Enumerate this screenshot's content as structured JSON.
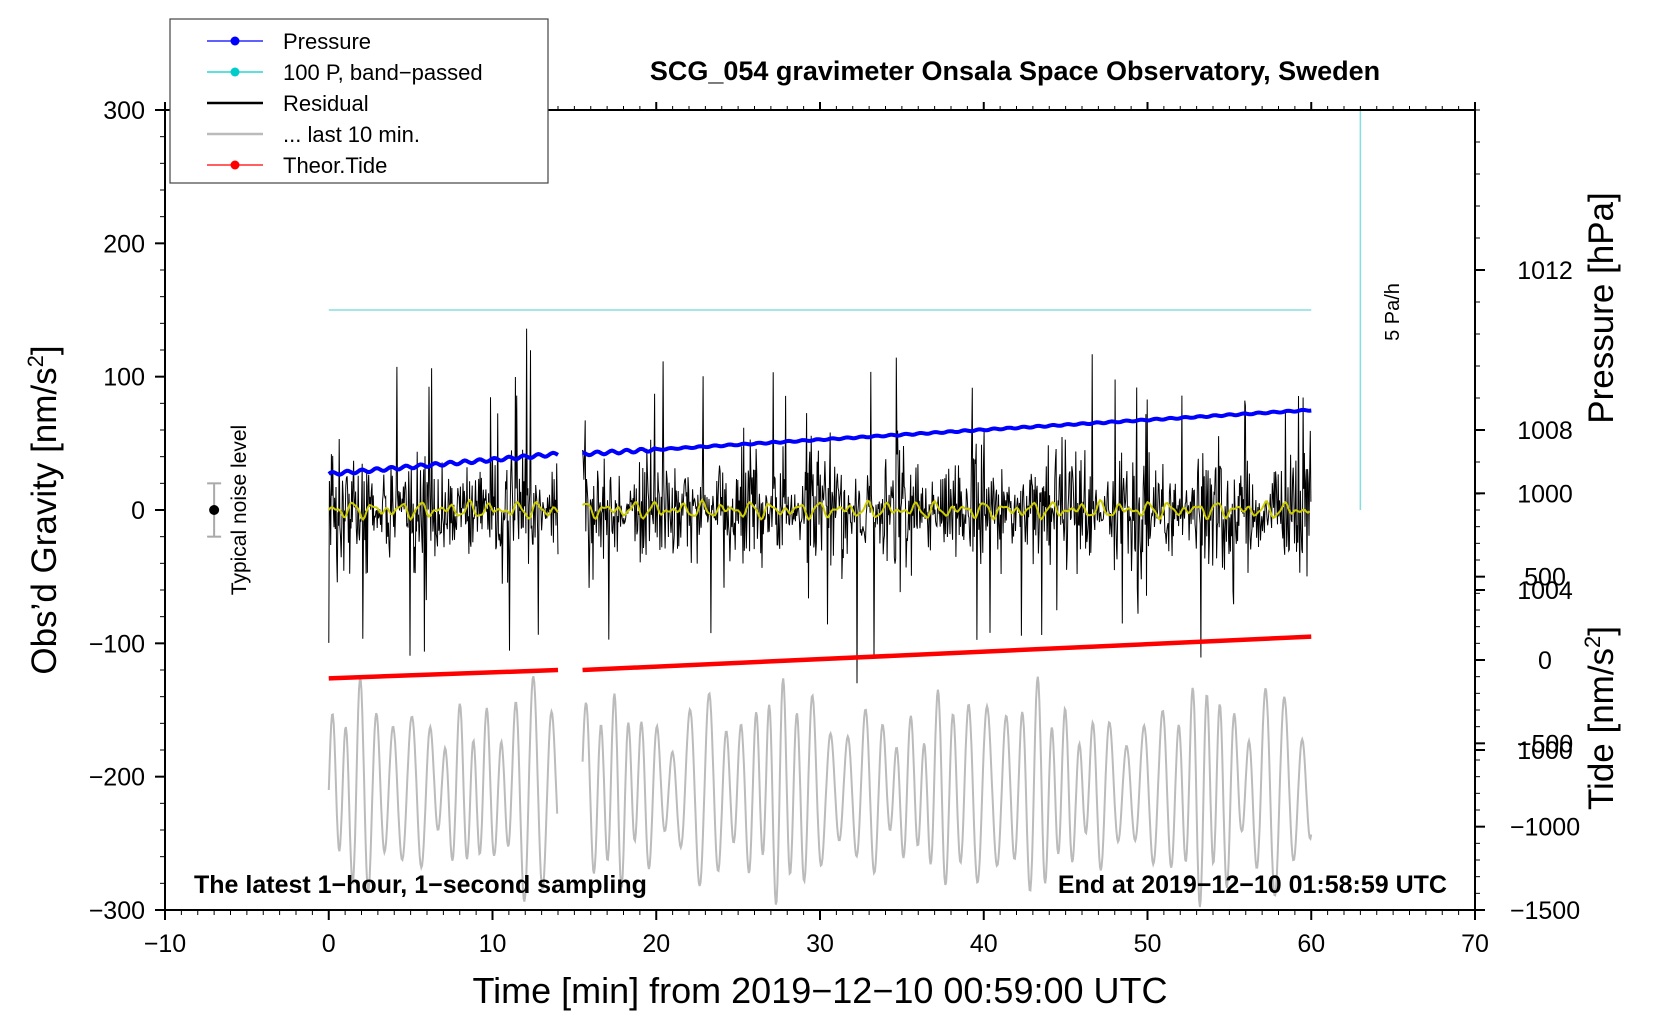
{
  "chart_data": {
    "type": "line",
    "title": "SCG_054 gravimeter Onsala Space Observatory, Sweden",
    "xlabel": "Time [min] from 2019−12−10 00:59:00 UTC",
    "ylabel_main": "Obs’d Gravity [nm/s",
    "ylabel_sup": "2",
    "ylabel_close": "]",
    "ylabel_pressure": "Pressure [hPa]",
    "ylabel_tide": "Tide [nm/s",
    "ylabel_tide_sup": "2",
    "ylabel_tide_close": "]",
    "xlim": [
      -10,
      70
    ],
    "ylim": [
      -300,
      300
    ],
    "pressure_lim": [
      996,
      1016
    ],
    "tide_lim": [
      -1500,
      3300
    ],
    "x_ticks": [
      "−10",
      "0",
      "10",
      "20",
      "30",
      "40",
      "50",
      "60",
      "70"
    ],
    "x_tick_values": [
      -10,
      0,
      10,
      20,
      30,
      40,
      50,
      60,
      70
    ],
    "y_ticks": [
      "300",
      "200",
      "100",
      "0",
      "−100",
      "−200",
      "−300"
    ],
    "y_tick_values": [
      300,
      200,
      100,
      0,
      -100,
      -200,
      -300
    ],
    "pressure_ticks": [
      "1012",
      "1008",
      "1004",
      "1000"
    ],
    "pressure_tick_values": [
      1012,
      1008,
      1004,
      1000
    ],
    "tide_ticks": [
      "1000",
      "500",
      "0",
      "−500",
      "−1000",
      "−1500"
    ],
    "tide_tick_values": [
      1000,
      500,
      0,
      -500,
      -1000,
      -1500
    ],
    "legend": [
      {
        "label": "Pressure",
        "color": "#0000ff",
        "marker": true
      },
      {
        "label": "100 P, band−passed",
        "color": "#00cccc",
        "marker": true
      },
      {
        "label": "Residual",
        "color": "#000000",
        "marker": false
      },
      {
        "label": "... last 10 min.",
        "color": "#bbbbbb",
        "marker": false
      },
      {
        "label": "Theor.Tide",
        "color": "#ff0000",
        "marker": true
      }
    ],
    "legend_position": "top-left",
    "annotations": {
      "left_bottom": "The latest 1−hour, 1−second sampling",
      "right_bottom": "End at 2019−12−10 01:58:59 UTC",
      "noise_label": "Typical noise level",
      "rate_label": "5 Pa/h"
    },
    "noise_bar": {
      "x": -7,
      "center": 0,
      "halfwidth": 20
    },
    "rate_bar": {
      "x": 63,
      "from": 0,
      "to": 300
    },
    "gap": [
      14,
      15.5
    ],
    "series": [
      {
        "name": "Pressure",
        "unit": "hPa",
        "x": [
          0,
          14,
          15.5,
          60
        ],
        "values": [
          1006.9,
          1007.4,
          1007.4,
          1008.5
        ],
        "color": "#0000ff"
      },
      {
        "name": "100 P, band-passed",
        "unit": "nm/s2",
        "x": [
          0,
          60
        ],
        "values": [
          150,
          150
        ],
        "color": "#88dddd"
      },
      {
        "name": "Theor.Tide",
        "unit": "nm/s2",
        "x": [
          0,
          14,
          15.5,
          60
        ],
        "values": [
          -110,
          -60,
          -60,
          140
        ],
        "color": "#ff0000"
      },
      {
        "name": "Residual",
        "unit": "nm/s2",
        "x_range": [
          0,
          60
        ],
        "amplitude_peaks": [
          110,
          115,
          140,
          120,
          110,
          140,
          130,
          145,
          115,
          90
        ],
        "color": "#000000"
      },
      {
        "name": "... last 10 min.",
        "unit": "nm/s2",
        "x_range": [
          0,
          60
        ],
        "baseline": -200,
        "amplitude": 75,
        "color": "#bbbbbb"
      },
      {
        "name": "Residual smoothed",
        "unit": "nm/s2",
        "x_range": [
          0,
          60
        ],
        "baseline": 0,
        "amplitude": 6,
        "color": "#cccc00"
      }
    ]
  }
}
